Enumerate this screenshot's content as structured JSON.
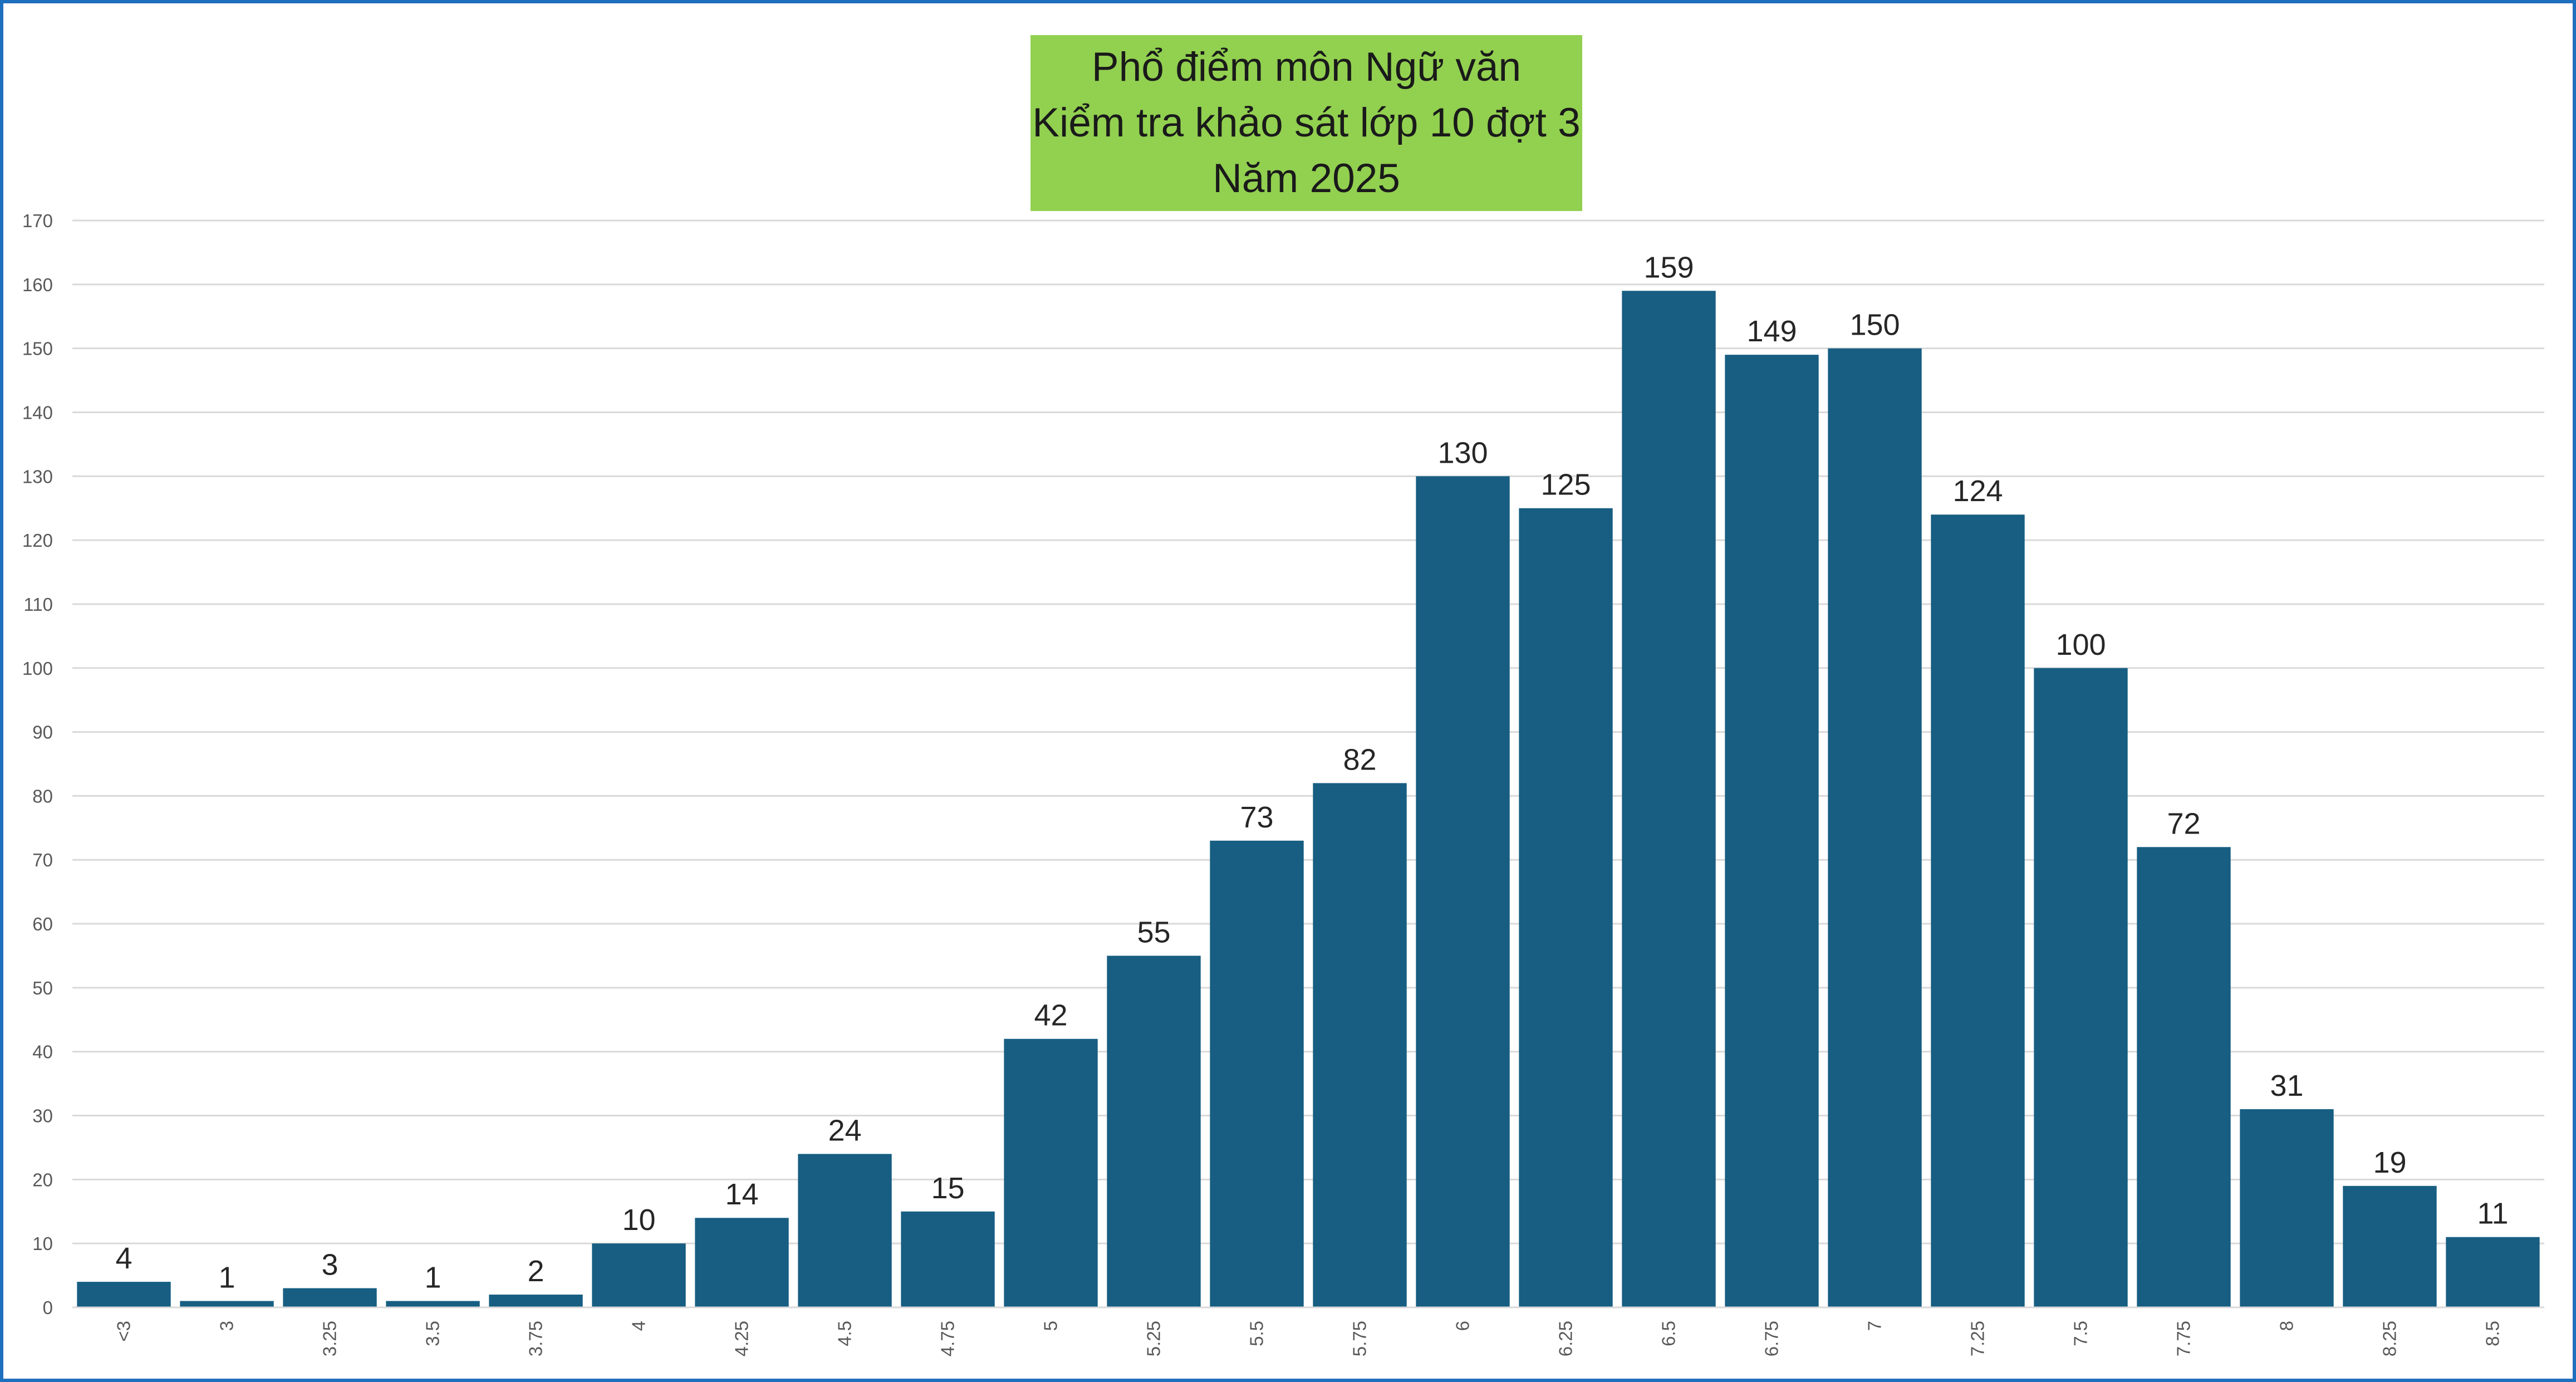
{
  "chart_data": {
    "type": "bar",
    "title_lines": [
      "Phổ điểm môn Ngữ văn",
      "Kiểm tra khảo sát lớp 10 đợt 3",
      "Năm 2025"
    ],
    "categories": [
      "<3",
      "3",
      "3.25",
      "3.5",
      "3.75",
      "4",
      "4.25",
      "4.5",
      "4.75",
      "5",
      "5.25",
      "5.5",
      "5.75",
      "6",
      "6.25",
      "6.5",
      "6.75",
      "7",
      "7.25",
      "7.5",
      "7.75",
      "8",
      "8.25",
      "8.5"
    ],
    "values": [
      4,
      1,
      3,
      1,
      2,
      10,
      14,
      24,
      15,
      42,
      55,
      73,
      82,
      130,
      125,
      159,
      149,
      150,
      124,
      100,
      72,
      31,
      19,
      11
    ],
    "data_labels": [
      "4",
      "1",
      "3",
      "1",
      "2",
      "10",
      "14",
      "24",
      "15",
      "42",
      "55",
      "73",
      "82",
      "130",
      "125",
      "159",
      "149",
      "150",
      "124",
      "100",
      "72",
      "31",
      "19",
      "11"
    ],
    "y_ticks": [
      "0",
      "10",
      "20",
      "30",
      "40",
      "50",
      "60",
      "70",
      "80",
      "90",
      "100",
      "110",
      "120",
      "130",
      "140",
      "150",
      "160",
      "170"
    ],
    "ylim": [
      0,
      170
    ],
    "y_step": 10,
    "grid": true,
    "legend": "none",
    "bar_color": "#175e82",
    "grid_color": "#d9d9d9",
    "title_bg_color": "#92d050",
    "frame_color": "#1f6fbf"
  }
}
